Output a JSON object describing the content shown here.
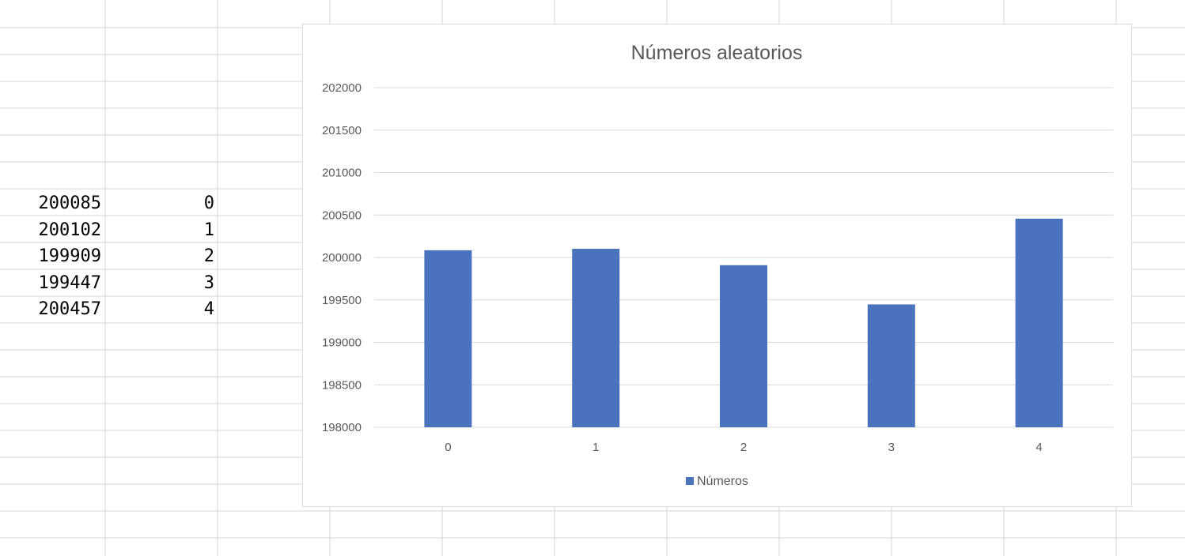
{
  "sheet": {
    "rows": [
      {
        "value": "200085",
        "index": "0"
      },
      {
        "value": "200102",
        "index": "1"
      },
      {
        "value": "199909",
        "index": "2"
      },
      {
        "value": "199447",
        "index": "3"
      },
      {
        "value": "200457",
        "index": "4"
      }
    ]
  },
  "chart_data": {
    "type": "bar",
    "title": "Números aleatorios",
    "categories": [
      "0",
      "1",
      "2",
      "3",
      "4"
    ],
    "series": [
      {
        "name": "Números",
        "values": [
          200085,
          200102,
          199909,
          199447,
          200457
        ],
        "color": "#4a72bd"
      }
    ],
    "ylim": [
      198000,
      202000
    ],
    "yticks": [
      198000,
      198500,
      199000,
      199500,
      200000,
      200500,
      201000,
      201500,
      202000
    ],
    "grid": true,
    "legend": "bottom"
  }
}
